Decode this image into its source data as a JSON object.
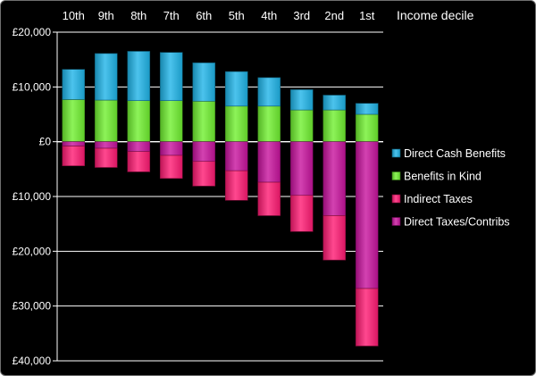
{
  "chart_data": {
    "type": "bar",
    "stacked": true,
    "title": "",
    "xlabel": "Income decile",
    "ylabel": "",
    "categories": [
      "10th",
      "9th",
      "8th",
      "7th",
      "6th",
      "5th",
      "4th",
      "3rd",
      "2nd",
      "1st"
    ],
    "ylim": [
      -40000,
      20000
    ],
    "y_ticks": [
      20000,
      10000,
      0,
      -10000,
      -20000,
      -30000,
      -40000
    ],
    "y_tick_labels": [
      "£20,000",
      "£10,000",
      "£0",
      "£10,000",
      "£20,000",
      "£30,000",
      "£40,000"
    ],
    "grid": "horizontal",
    "legend_position": "right",
    "series": [
      {
        "name": "Direct Cash Benefits",
        "color": "#1fb4e8",
        "stack": "positive",
        "values": [
          5500,
          8500,
          9000,
          8800,
          7000,
          6300,
          5200,
          3700,
          2700,
          2000
        ]
      },
      {
        "name": "Benefits in Kind",
        "color": "#70f030",
        "stack": "positive",
        "values": [
          7700,
          7600,
          7500,
          7500,
          7400,
          6500,
          6500,
          5800,
          5800,
          5000
        ]
      },
      {
        "name": "Indirect Taxes",
        "color": "#ff1a73",
        "stack": "negative",
        "values": [
          -3600,
          -3500,
          -3700,
          -4200,
          -4500,
          -5400,
          -6100,
          -6600,
          -8100,
          -10500
        ]
      },
      {
        "name": "Direct Taxes/Contribs",
        "color": "#c8139e",
        "stack": "negative",
        "values": [
          -800,
          -1200,
          -1800,
          -2500,
          -3600,
          -5300,
          -7400,
          -9800,
          -13500,
          -26800
        ]
      }
    ]
  }
}
